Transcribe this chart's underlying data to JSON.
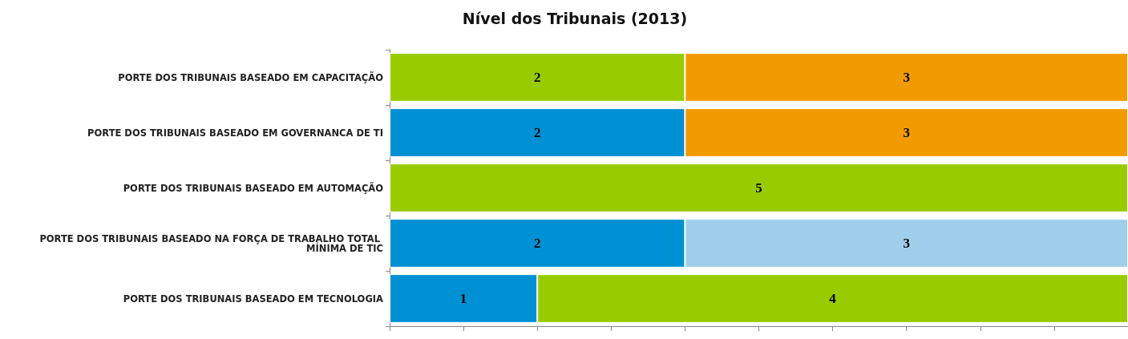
{
  "chart_data": {
    "type": "bar",
    "orientation": "horizontal",
    "stacked": true,
    "title": "Nível dos Tribunais (2013)",
    "categories": [
      "PORTE DOS TRIBUNAIS BASEADO EM CAPACITAÇÃO",
      "PORTE DOS TRIBUNAIS BASEADO EM GOVERNANCA DE TI",
      "PORTE DOS TRIBUNAIS BASEADO EM AUTOMAÇÃO",
      "PORTE DOS TRIBUNAIS BASEADO NA FORÇA DE TRABALHO TOTAL MÍNIMA DE TIC",
      "PORTE DOS TRIBUNAIS BASEADO EM TECNOLOGIA"
    ],
    "series": [
      {
        "values": [
          2,
          2,
          5,
          2,
          1
        ],
        "colors": [
          "#99cc00",
          "#0090d4",
          "#99cc00",
          "#0090d4",
          "#0090d4"
        ]
      },
      {
        "values": [
          3,
          3,
          null,
          3,
          4
        ],
        "colors": [
          "#f29b00",
          "#f29b00",
          "#99cc00",
          "#9fcfeb",
          "#99cc00"
        ]
      }
    ],
    "xlim": [
      0,
      5
    ],
    "xticks": [
      {
        "value": 0,
        "label": null
      },
      {
        "value": 0.5,
        "label": null
      },
      {
        "value": 1,
        "label": null
      },
      {
        "value": 1.5,
        "label": null
      },
      {
        "value": 2,
        "label": null
      },
      {
        "value": 2.5,
        "label": null
      },
      {
        "value": 3,
        "label": null
      },
      {
        "value": 3.5,
        "label": null
      },
      {
        "value": 4,
        "label": null
      },
      {
        "value": 4.5,
        "label": null
      },
      {
        "value": 5,
        "label": null
      }
    ],
    "tick_labels": "y",
    "data_labels": true,
    "grid": false
  }
}
